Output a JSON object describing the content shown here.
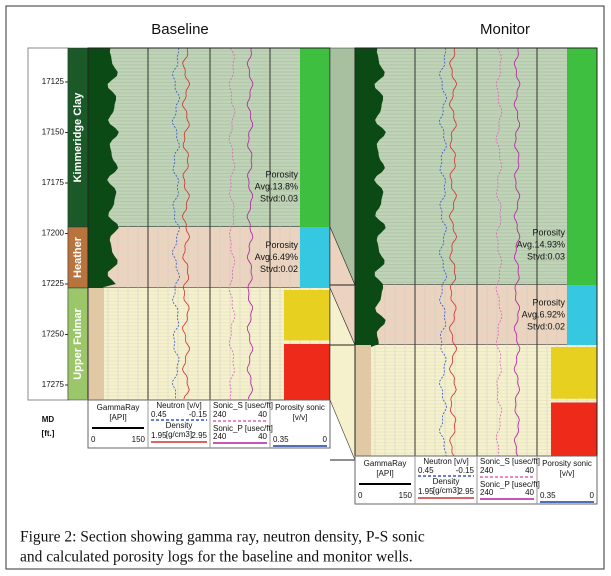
{
  "figure": {
    "panels": [
      {
        "title": "Baseline"
      },
      {
        "title": "Monitor"
      }
    ],
    "depth_axis": {
      "label": [
        "MD",
        "[ft.]"
      ],
      "ticks": [
        17125,
        17150,
        17175,
        17200,
        17225,
        17250,
        17275
      ]
    },
    "formations": [
      "Kimmeridge Clay",
      "Heather",
      "Upper Fulmar"
    ],
    "track_headers": {
      "gamma": {
        "name": [
          "GammaRay",
          "[API]"
        ],
        "min": "0",
        "max": "150"
      },
      "neutron": {
        "name": "Neutron [v/v]",
        "min": "0.45",
        "max": "-0.15"
      },
      "density": {
        "name": "Density",
        "unit": "[g/cm3]",
        "min": "1.95",
        "max": "2.95"
      },
      "sonic_s": {
        "name": "Sonic_S [usec/ft]",
        "min": "240",
        "max": "40"
      },
      "sonic_p": {
        "name": "Sonic_P [usec/ft]",
        "min": "240",
        "max": "40"
      },
      "porosity": {
        "name": [
          "Porosity sonic",
          "[v/v]"
        ],
        "min": "0.35",
        "max": "0"
      }
    },
    "annotations": {
      "baseline": [
        [
          "Porosity",
          "Avg.13.8%",
          "Stvd:0.03"
        ],
        [
          "Porosity",
          "Avg.6.49%",
          "Stvd:0.02"
        ]
      ],
      "monitor": [
        [
          "Porosity",
          "Avg.14.93%",
          "Stvd:0.03"
        ],
        [
          "Porosity",
          "Avg.6.92%",
          "Stvd:0.02"
        ]
      ]
    },
    "caption": [
      "Figure 2: Section showing gamma ray, neutron density, P-S sonic",
      "and calculated porosity logs for the baseline and monitor wells."
    ]
  }
}
